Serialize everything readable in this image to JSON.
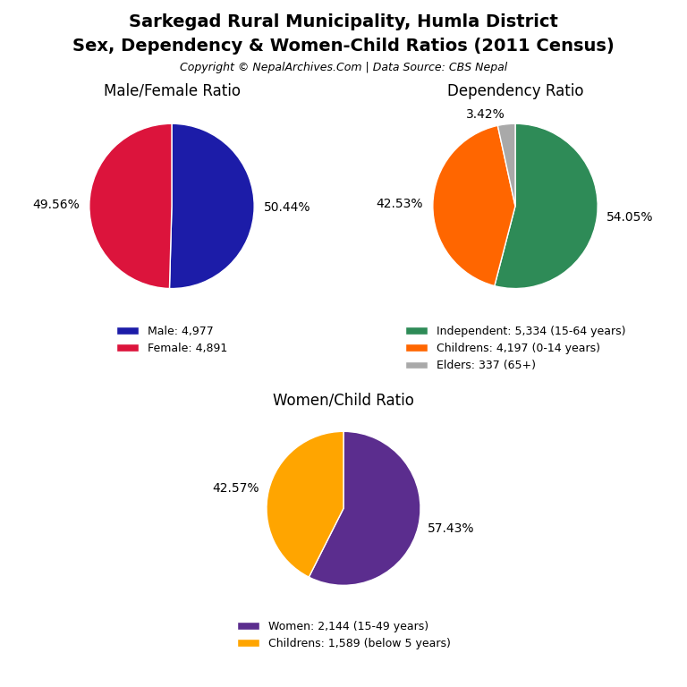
{
  "title": "Sarkegad Rural Municipality, Humla District",
  "subtitle": "Sex, Dependency & Women-Child Ratios (2011 Census)",
  "annotations": [
    "Copyright © NepalArchives.Com | Data Source: CBS Nepal"
  ],
  "chart_data": [
    {
      "type": "pie",
      "title": "Male/Female Ratio",
      "categories": [
        "Male: 4,977",
        "Female: 4,891"
      ],
      "values": [
        50.44,
        49.56
      ],
      "value_labels": [
        "50.44%",
        "49.56%"
      ],
      "colors": [
        "#1C1CA8",
        "#DC143C"
      ],
      "data_labels": true,
      "legend": "upper center"
    },
    {
      "type": "pie",
      "title": "Dependency Ratio",
      "categories": [
        "Independent: 5,334 (15-64 years)",
        "Childrens: 4,197 (0-14 years)",
        "Elders: 337 (65+)"
      ],
      "values": [
        54.05,
        42.53,
        3.42
      ],
      "value_labels": [
        "54.05%",
        "42.53%",
        "3.42%"
      ],
      "colors": [
        "#2E8B57",
        "#FF6600",
        "#A9A9A9"
      ],
      "data_labels": true,
      "legend": "upper center"
    },
    {
      "type": "pie",
      "title": "Women/Child Ratio",
      "categories": [
        "Women: 2,144 (15-49 years)",
        "Childrens: 1,589 (below 5 years)"
      ],
      "values": [
        57.43,
        42.57
      ],
      "value_labels": [
        "57.43%",
        "42.57%"
      ],
      "colors": [
        "#5B2D8E",
        "#FFA500"
      ],
      "data_labels": true,
      "legend": "upper center"
    }
  ]
}
